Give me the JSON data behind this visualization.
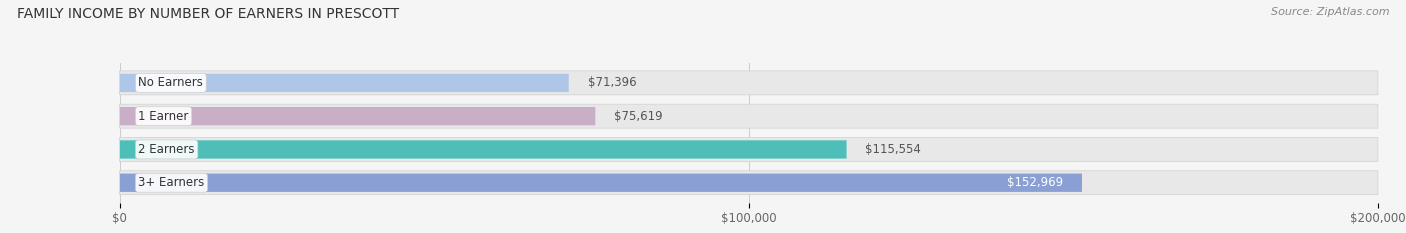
{
  "title": "FAMILY INCOME BY NUMBER OF EARNERS IN PRESCOTT",
  "source": "Source: ZipAtlas.com",
  "categories": [
    "No Earners",
    "1 Earner",
    "2 Earners",
    "3+ Earners"
  ],
  "values": [
    71396,
    75619,
    115554,
    152969
  ],
  "bar_colors": [
    "#aec6e8",
    "#c9aec8",
    "#4dbfb8",
    "#8a9fd4"
  ],
  "bar_bg_color": "#e8e8e8",
  "value_labels": [
    "$71,396",
    "$75,619",
    "$115,554",
    "$152,969"
  ],
  "label_inside": [
    false,
    false,
    false,
    true
  ],
  "xlim": [
    0,
    200000
  ],
  "xticks": [
    0,
    100000,
    200000
  ],
  "xtick_labels": [
    "$0",
    "$100,000",
    "$200,000"
  ],
  "background_color": "#f5f5f5",
  "title_fontsize": 10,
  "source_fontsize": 8,
  "label_fontsize": 8.5,
  "tick_fontsize": 8.5,
  "bar_label_fontsize": 8.5
}
